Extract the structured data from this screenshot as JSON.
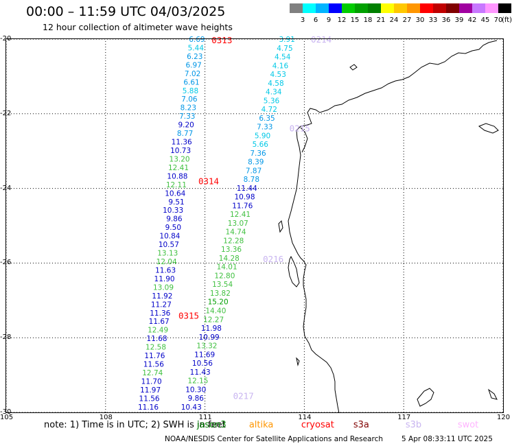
{
  "header": {
    "title": "00:00 – 11:59 UTC 04/03/2025",
    "subtitle": "12 hour collection of altimeter wave heights"
  },
  "colorbar": {
    "colors": [
      "#808080",
      "#00ffff",
      "#00b4ff",
      "#0000ff",
      "#00cc00",
      "#00a000",
      "#008000",
      "#ffff00",
      "#ffc800",
      "#ff9600",
      "#ff0000",
      "#c00000",
      "#800000",
      "#a000a0",
      "#c878ff",
      "#ff96ff",
      "#000000"
    ],
    "labels": [
      "3",
      "6",
      "9",
      "12",
      "15",
      "18",
      "21",
      "24",
      "27",
      "30",
      "33",
      "36",
      "39",
      "42",
      "45",
      "70"
    ],
    "unit": "(ft)"
  },
  "axes": {
    "lon_range": [
      105,
      120
    ],
    "lat_range": [
      -30,
      -20
    ],
    "x_ticks": [
      105,
      108,
      111,
      114,
      117,
      120
    ],
    "y_ticks": [
      -20,
      -22,
      -24,
      -26,
      -28,
      -30
    ],
    "x_tick_labels": [
      "105",
      "108",
      "111",
      "114",
      "117",
      "120"
    ],
    "y_tick_labels": [
      "-20",
      "-22",
      "-24",
      "-26",
      "-28",
      "-30"
    ]
  },
  "track_1": {
    "lon_start": 111.0,
    "lon_end": 109.6,
    "lat_start": -20.0,
    "lat_end": -29.85,
    "values": [
      "6.69",
      "5.44",
      "6.23",
      "6.97",
      "7.02",
      "6.61",
      "5.88",
      "7.06",
      "8.23",
      "7.33",
      "9.20",
      "8.77",
      "11.36",
      "10.73",
      "13.20",
      "12.41",
      "10.88",
      "12.11",
      "10.64",
      "9.51",
      "10.33",
      "9.86",
      "9.50",
      "10.84",
      "10.57",
      "13.13",
      "12.04",
      "11.63",
      "11.90",
      "13.09",
      "11.92",
      "11.27",
      "11.36",
      "11.67",
      "12.49",
      "11.68",
      "12.58",
      "11.76",
      "11.56",
      "12.74",
      "11.70",
      "11.97",
      "11.56",
      "11.16"
    ]
  },
  "track_2": {
    "lon_start": 113.72,
    "lon_end": 110.9,
    "lat_start": -20.0,
    "lat_end": -29.85,
    "values": [
      "3.91",
      "4.75",
      "4.54",
      "4.16",
      "4.53",
      "4.58",
      "4.34",
      "5.36",
      "4.72",
      "6.35",
      "7.33",
      "5.90",
      "5.66",
      "7.36",
      "8.39",
      "7.87",
      "8.78",
      "11.44",
      "10.98",
      "11.76",
      "12.41",
      "13.07",
      "14.74",
      "12.28",
      "13.36",
      "14.28",
      "14.01",
      "12.80",
      "13.54",
      "13.82",
      "15.20",
      "14.40",
      "12.27",
      "11.98",
      "10.99",
      "13.32",
      "11.69",
      "10.56",
      "11.43",
      "12.15",
      "10.30",
      "9.86",
      "10.43"
    ]
  },
  "pass_labels": [
    {
      "text": "0313",
      "lon": 111.2,
      "lat": -20.02,
      "color": "#ff0000"
    },
    {
      "text": "0314",
      "lon": 110.8,
      "lat": -23.8,
      "color": "#ff0000"
    },
    {
      "text": "0315",
      "lon": 110.2,
      "lat": -27.4,
      "color": "#ff0000"
    },
    {
      "text": "0214",
      "lon": 114.2,
      "lat": -20.0,
      "color": "#c8b4f0"
    },
    {
      "text": "0215",
      "lon": 113.55,
      "lat": -22.38,
      "color": "#c8b4f0"
    },
    {
      "text": "0216",
      "lon": 112.75,
      "lat": -25.88,
      "color": "#c8b4f0"
    },
    {
      "text": "0217",
      "lon": 111.85,
      "lat": -29.55,
      "color": "#c8b4f0"
    }
  ],
  "note": {
    "prefix": "note:  1) Time is in UTC; 2) SWH is in feet",
    "satellites": [
      {
        "name": "jason3",
        "color": "#008000"
      },
      {
        "name": "altika",
        "color": "#ff9600"
      },
      {
        "name": "cryosat",
        "color": "#ff0000"
      },
      {
        "name": "s3a",
        "color": "#800000"
      },
      {
        "name": "s3b",
        "color": "#c8b4f0"
      },
      {
        "name": "swot",
        "color": "#ffb4ff"
      }
    ]
  },
  "footer": {
    "org": "NOAA/NESDIS Center for Satellite Applications and Research",
    "timestamp": "5 Apr 08:33:11 UTC 2025"
  }
}
